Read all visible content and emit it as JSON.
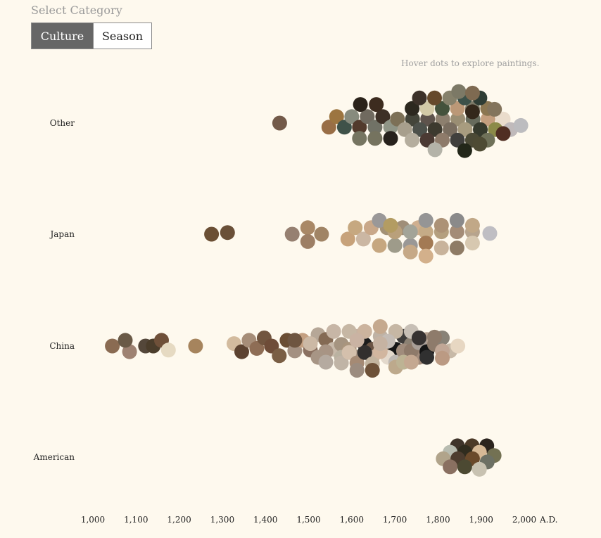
{
  "controls": {
    "title": "Select Category",
    "buttons": [
      "Culture",
      "Season"
    ],
    "active": "Culture"
  },
  "hint": "Hover dots to explore paintings.",
  "chart_data": {
    "type": "scatter",
    "categories": [
      "Other",
      "Japan",
      "China",
      "American"
    ],
    "x_ticks": [
      "1,000",
      "1,100",
      "1,200",
      "1,300",
      "1,400",
      "1,500",
      "1,600",
      "1,700",
      "1,800",
      "1,900",
      "2,000"
    ],
    "x_unit": "A.D.",
    "xlim": [
      1000,
      2000
    ],
    "series": [
      {
        "category": "Other",
        "points": [
          [
            1433,
            0,
            "#735a49"
          ],
          [
            1547,
            0.25,
            "#996e46"
          ],
          [
            1565,
            -0.4,
            "#9c7540"
          ],
          [
            1583,
            0.25,
            "#3f5249"
          ],
          [
            1600,
            -0.4,
            "#878b7d"
          ],
          [
            1618,
            0.25,
            "#523a2c"
          ],
          [
            1636,
            -0.4,
            "#706a5f"
          ],
          [
            1654,
            0.25,
            "#717266"
          ],
          [
            1672,
            -0.4,
            "#3d3026"
          ],
          [
            1690,
            0.25,
            "#8f9586"
          ],
          [
            1620,
            -1.15,
            "#2b231a"
          ],
          [
            1657,
            -1.15,
            "#3d2c1f"
          ],
          [
            1618,
            0.95,
            "#767561"
          ],
          [
            1654,
            0.95,
            "#75735f"
          ],
          [
            1690,
            0.95,
            "#27221d"
          ],
          [
            1706,
            -0.25,
            "#7c7056"
          ],
          [
            1741,
            -0.25,
            "#44453a"
          ],
          [
            1776,
            -0.25,
            "#5e534c"
          ],
          [
            1811,
            -0.25,
            "#8c7f6e"
          ],
          [
            1846,
            -0.25,
            "#9a8e73"
          ],
          [
            1881,
            -0.25,
            "#676b5c"
          ],
          [
            1916,
            -0.25,
            "#c39e7e"
          ],
          [
            1951,
            -0.25,
            "#eadccc"
          ],
          [
            1723,
            0.4,
            "#a79f8d"
          ],
          [
            1758,
            0.4,
            "#4d514b"
          ],
          [
            1793,
            0.4,
            "#3d3a2f"
          ],
          [
            1828,
            0.4,
            "#7a6e60"
          ],
          [
            1863,
            0.4,
            "#a89c7f"
          ],
          [
            1898,
            0.4,
            "#363a2d"
          ],
          [
            1933,
            0.4,
            "#8b8a48"
          ],
          [
            1968,
            0.4,
            "#c0babb"
          ],
          [
            1992,
            0.15,
            "#bcbcbf"
          ],
          [
            1740,
            -0.9,
            "#2c281f"
          ],
          [
            1775,
            -0.9,
            "#d2c9a6"
          ],
          [
            1810,
            -0.9,
            "#44523c"
          ],
          [
            1845,
            -0.9,
            "#bb9877"
          ],
          [
            1880,
            -0.9,
            "#7d7a68"
          ],
          [
            1915,
            -0.9,
            "#8b7651"
          ],
          [
            1740,
            1.05,
            "#b5ae9e"
          ],
          [
            1775,
            1.05,
            "#4b3a33"
          ],
          [
            1810,
            1.05,
            "#8e7b6a"
          ],
          [
            1845,
            1.05,
            "#41403d"
          ],
          [
            1880,
            1.05,
            "#4c4a36"
          ],
          [
            1915,
            1.05,
            "#6f7159"
          ],
          [
            1757,
            -1.55,
            "#3c3129"
          ],
          [
            1792,
            -1.55,
            "#65492b"
          ],
          [
            1827,
            -1.55,
            "#86816b"
          ],
          [
            1862,
            -1.55,
            "#3c5149"
          ],
          [
            1897,
            -1.55,
            "#2f3d35"
          ],
          [
            1793,
            1.65,
            "#b4b3a8"
          ],
          [
            1862,
            1.7,
            "#232719"
          ],
          [
            1848,
            -1.95,
            "#7c7966"
          ],
          [
            1880,
            -1.85,
            "#7e6a51"
          ],
          [
            1931,
            -0.85,
            "#83745c"
          ],
          [
            1951,
            0.65,
            "#502e22"
          ],
          [
            1897,
            1.3,
            "#4e4b34"
          ],
          [
            1880,
            -0.7,
            "#34281b"
          ]
        ]
      },
      {
        "category": "Japan",
        "points": [
          [
            1275,
            0,
            "#6b4f34"
          ],
          [
            1312,
            -0.1,
            "#6a5038"
          ],
          [
            1462,
            0,
            "#968071"
          ],
          [
            1498,
            -0.4,
            "#a98866"
          ],
          [
            1498,
            0.45,
            "#9d7f65"
          ],
          [
            1530,
            0,
            "#a08465"
          ],
          [
            1591,
            0.3,
            "#c7a27a"
          ],
          [
            1608,
            -0.4,
            "#c6a880"
          ],
          [
            1627,
            0.3,
            "#cbb7a3"
          ],
          [
            1645,
            -0.4,
            "#c9a889"
          ],
          [
            1664,
            0.7,
            "#c6a780"
          ],
          [
            1682,
            -0.4,
            "#a39175"
          ],
          [
            1700,
            0.7,
            "#9e9b8a"
          ],
          [
            1718,
            -0.4,
            "#9f8e78"
          ],
          [
            1736,
            0.7,
            "#9a9896"
          ],
          [
            1754,
            -0.4,
            "#cfaf8f"
          ],
          [
            1664,
            -0.85,
            "#9a9898"
          ],
          [
            1700,
            -0.15,
            "#b9a07b"
          ],
          [
            1736,
            -0.15,
            "#a3a498"
          ],
          [
            1772,
            -0.15,
            "#c5ab86"
          ],
          [
            1808,
            -0.15,
            "#b49f7e"
          ],
          [
            1844,
            -0.15,
            "#a48c77"
          ],
          [
            1880,
            -0.15,
            "#b7a48d"
          ],
          [
            1690,
            -0.55,
            "#b39c62"
          ],
          [
            1772,
            -0.85,
            "#959595"
          ],
          [
            1808,
            -0.55,
            "#ac9276"
          ],
          [
            1844,
            -0.85,
            "#8a8a8a"
          ],
          [
            1880,
            -0.55,
            "#c1a887"
          ],
          [
            1920,
            -0.05,
            "#bfbec3"
          ],
          [
            1772,
            0.55,
            "#a37a54"
          ],
          [
            1808,
            0.85,
            "#c8b39b"
          ],
          [
            1844,
            0.85,
            "#8e7b65"
          ],
          [
            1880,
            0.55,
            "#d7c8b0"
          ],
          [
            1736,
            1.1,
            "#c6a987"
          ],
          [
            1772,
            1.35,
            "#d3b08b"
          ]
        ]
      },
      {
        "category": "China",
        "points": [
          [
            1045,
            0,
            "#8a6b52"
          ],
          [
            1085,
            0.35,
            "#9e8272"
          ],
          [
            1075,
            -0.35,
            "#6a5a47"
          ],
          [
            1122,
            0,
            "#54473a"
          ],
          [
            1140,
            0,
            "#4b3d2b"
          ],
          [
            1159,
            -0.35,
            "#6f5039"
          ],
          [
            1175,
            0.25,
            "#e6dac2"
          ],
          [
            1238,
            0,
            "#a6845d"
          ],
          [
            1327,
            -0.15,
            "#d3bb9e"
          ],
          [
            1345,
            0.35,
            "#5c4230"
          ],
          [
            1362,
            -0.35,
            "#a68d78"
          ],
          [
            1380,
            0.15,
            "#8e6d55"
          ],
          [
            1397,
            -0.5,
            "#71553f"
          ],
          [
            1414,
            0,
            "#6e4c38"
          ],
          [
            1432,
            0.6,
            "#7a5e44"
          ],
          [
            1450,
            -0.35,
            "#6b4e33"
          ],
          [
            1468,
            0.3,
            "#a39081"
          ],
          [
            1486,
            -0.35,
            "#c4a081"
          ],
          [
            1504,
            0.25,
            "#8a7060"
          ],
          [
            1468,
            -0.35,
            "#6e5540"
          ],
          [
            1522,
            -0.7,
            "#b6a797"
          ],
          [
            1540,
            -0.4,
            "#846a54"
          ],
          [
            1558,
            0.2,
            "#c7b9a9"
          ],
          [
            1576,
            -0.1,
            "#a59480"
          ],
          [
            1594,
            0.2,
            "#a9957d"
          ],
          [
            1612,
            -0.6,
            "#c6b0a0"
          ],
          [
            1630,
            -0.1,
            "#1c1c1c"
          ],
          [
            1648,
            0.2,
            "#6a5444"
          ],
          [
            1666,
            -0.6,
            "#bfb2a4"
          ],
          [
            1684,
            -0.1,
            "#a79078"
          ],
          [
            1702,
            0.2,
            "#151515"
          ],
          [
            1720,
            -0.6,
            "#3e3c3a"
          ],
          [
            1738,
            -0.1,
            "#8b8173"
          ],
          [
            1756,
            0.2,
            "#c3ad9d"
          ],
          [
            1774,
            -0.4,
            "#b39f8e"
          ],
          [
            1540,
            0.35,
            "#a89484"
          ],
          [
            1558,
            -0.9,
            "#c7b6a6"
          ],
          [
            1576,
            0.7,
            "#bab2a1"
          ],
          [
            1594,
            -0.9,
            "#c6b7a4"
          ],
          [
            1612,
            0.7,
            "#a69484"
          ],
          [
            1630,
            -0.9,
            "#ccb49e"
          ],
          [
            1648,
            0.7,
            "#c9b29f"
          ],
          [
            1666,
            -1.2,
            "#c5a98e"
          ],
          [
            1684,
            0.7,
            "#e3d9cc"
          ],
          [
            1702,
            -0.9,
            "#c6b7a4"
          ],
          [
            1720,
            0.7,
            "#5f5a55"
          ],
          [
            1738,
            -0.9,
            "#c7bfb5"
          ],
          [
            1756,
            0.7,
            "#a38c7c"
          ],
          [
            1522,
            0.7,
            "#a79585"
          ],
          [
            1540,
            1.0,
            "#b5aaa0"
          ],
          [
            1576,
            1.05,
            "#c0b4a6"
          ],
          [
            1594,
            0.4,
            "#d4c0ac"
          ],
          [
            1612,
            1.05,
            "#a58a74"
          ],
          [
            1630,
            0.4,
            "#322f2e"
          ],
          [
            1648,
            1.1,
            "#c2b49f"
          ],
          [
            1666,
            0.35,
            "#d1b69f"
          ],
          [
            1684,
            -0.3,
            "#c4bcb5"
          ],
          [
            1702,
            1.0,
            "#bdb8b3"
          ],
          [
            1720,
            0.3,
            "#a08c7c"
          ],
          [
            1738,
            0.3,
            "#8e7a6a"
          ],
          [
            1756,
            -0.2,
            "#a89e97"
          ],
          [
            1774,
            0.35,
            "#151515"
          ],
          [
            1792,
            -0.1,
            "#8e7b6b"
          ],
          [
            1810,
            -0.5,
            "#888277"
          ],
          [
            1828,
            0.3,
            "#c7b9a7"
          ],
          [
            1846,
            0,
            "#e7d7c2"
          ],
          [
            1504,
            -0.15,
            "#ccb9a5"
          ],
          [
            1612,
            -0.35,
            "#cab3a3"
          ],
          [
            1666,
            -0.15,
            "#c6b3a2"
          ],
          [
            1612,
            1.5,
            "#9c8c7f"
          ],
          [
            1648,
            1.5,
            "#6d5138"
          ],
          [
            1702,
            1.3,
            "#bda98c"
          ],
          [
            1756,
            -0.5,
            "#363231"
          ],
          [
            1792,
            -0.55,
            "#8e7b6b"
          ],
          [
            1720,
            1.0,
            "#bdb394"
          ],
          [
            1738,
            1.0,
            "#c4a891"
          ],
          [
            1810,
            0.3,
            "#c1a796"
          ],
          [
            1774,
            0.7,
            "#303030"
          ],
          [
            1810,
            0.75,
            "#bb9a83"
          ]
        ]
      },
      {
        "category": "American",
        "points": [
          [
            1845,
            -0.7,
            "#3f342a"
          ],
          [
            1879,
            -0.7,
            "#4c3a27"
          ],
          [
            1913,
            -0.7,
            "#2b241e"
          ],
          [
            1828,
            -0.3,
            "#b8bcb0"
          ],
          [
            1862,
            -0.3,
            "#302c1e"
          ],
          [
            1896,
            -0.3,
            "#d6b996"
          ],
          [
            1930,
            -0.1,
            "#737153"
          ],
          [
            1812,
            0.1,
            "#b1a48b"
          ],
          [
            1846,
            0.1,
            "#4d3d2f"
          ],
          [
            1880,
            0.1,
            "#6a4a2b"
          ],
          [
            1914,
            0.3,
            "#6c7064"
          ],
          [
            1828,
            0.6,
            "#8a7061"
          ],
          [
            1862,
            0.6,
            "#4c4932"
          ],
          [
            1896,
            0.75,
            "#c8c2b1"
          ]
        ]
      }
    ]
  }
}
